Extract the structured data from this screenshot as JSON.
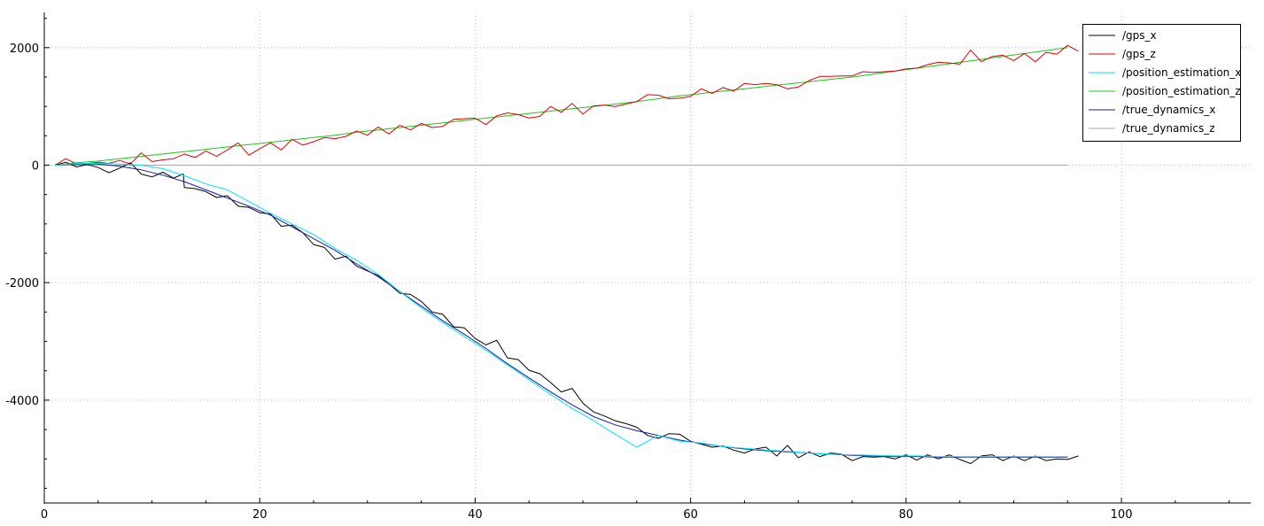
{
  "chart_data": {
    "type": "line",
    "title": "",
    "xlabel": "",
    "ylabel": "",
    "xlim": [
      0,
      112
    ],
    "ylim": [
      -5750,
      2600
    ],
    "x_ticks": [
      0,
      20,
      40,
      60,
      80,
      100
    ],
    "y_ticks": [
      -4000,
      -2000,
      0,
      2000
    ],
    "x_tick_labels": [
      "0",
      "20",
      "40",
      "60",
      "80",
      "100"
    ],
    "y_tick_labels": [
      "-4000",
      "-2000",
      "0",
      "2000"
    ],
    "grid": true,
    "legend_position": "top-right",
    "series": [
      {
        "name": "/gps_x",
        "color": "#000000",
        "x": [
          1,
          2,
          3,
          4,
          5,
          6,
          7,
          8,
          9,
          10,
          11,
          12,
          12.9,
          13,
          14,
          15,
          16,
          17,
          18,
          19,
          20,
          21,
          22,
          23,
          24,
          25,
          26,
          27,
          28,
          29,
          30,
          31,
          32,
          33,
          34,
          35,
          36,
          37,
          38,
          39,
          40,
          41,
          42,
          43,
          44,
          45,
          46,
          47,
          48,
          49,
          50,
          51,
          52,
          53,
          54,
          55,
          56,
          57,
          58,
          59,
          60,
          61,
          62,
          63,
          64,
          65,
          66,
          67,
          68,
          69,
          70,
          71,
          72,
          73,
          74,
          75,
          76,
          77,
          78,
          79,
          80,
          81,
          82,
          83,
          84,
          85,
          86,
          87,
          88,
          89,
          90,
          91,
          92,
          93,
          94,
          95,
          96
        ],
        "y": [
          0,
          50,
          -30,
          10,
          -40,
          -130,
          -50,
          40,
          -150,
          -200,
          -120,
          -220,
          -150,
          -380,
          -400,
          -450,
          -550,
          -520,
          -700,
          -720,
          -810,
          -830,
          -1040,
          -1020,
          -1150,
          -1350,
          -1400,
          -1600,
          -1550,
          -1720,
          -1800,
          -1880,
          -2020,
          -2180,
          -2200,
          -2320,
          -2500,
          -2540,
          -2750,
          -2770,
          -2950,
          -3060,
          -2980,
          -3280,
          -3310,
          -3490,
          -3550,
          -3700,
          -3860,
          -3800,
          -4050,
          -4200,
          -4270,
          -4350,
          -4400,
          -4460,
          -4600,
          -4650,
          -4570,
          -4580,
          -4700,
          -4750,
          -4800,
          -4780,
          -4850,
          -4900,
          -4830,
          -4800,
          -4950,
          -4770,
          -4980,
          -4880,
          -4960,
          -4900,
          -4920,
          -5030,
          -4960,
          -4970,
          -4960,
          -5000,
          -4930,
          -5020,
          -4930,
          -5000,
          -4930,
          -5010,
          -5080,
          -4950,
          -4930,
          -5030,
          -4950,
          -5030,
          -4950,
          -5030,
          -5000,
          -5010,
          -4950
        ]
      },
      {
        "name": "/gps_z",
        "color": "#e00000",
        "x": [
          1,
          2,
          3,
          4,
          5,
          6,
          7,
          8,
          9,
          10,
          11,
          12,
          13,
          14,
          15,
          16,
          17,
          18,
          19,
          20,
          21,
          22,
          23,
          24,
          25,
          26,
          27,
          28,
          29,
          30,
          31,
          32,
          33,
          34,
          35,
          36,
          37,
          38,
          39,
          40,
          41,
          42,
          43,
          44,
          45,
          46,
          47,
          48,
          49,
          50,
          51,
          52,
          53,
          54,
          55,
          56,
          57,
          58,
          59,
          60,
          61,
          62,
          63,
          64,
          65,
          66,
          67,
          68,
          69,
          70,
          71,
          72,
          73,
          74,
          75,
          76,
          77,
          78,
          79,
          80,
          81,
          82,
          83,
          84,
          85,
          86,
          87,
          88,
          89,
          90,
          91,
          92,
          93,
          94,
          95,
          96
        ],
        "y": [
          0,
          110,
          20,
          30,
          50,
          30,
          80,
          20,
          210,
          60,
          90,
          110,
          190,
          130,
          240,
          150,
          260,
          380,
          170,
          280,
          380,
          260,
          440,
          340,
          400,
          470,
          450,
          490,
          580,
          510,
          650,
          530,
          680,
          600,
          710,
          640,
          660,
          780,
          790,
          800,
          690,
          840,
          890,
          860,
          800,
          830,
          1000,
          900,
          1050,
          870,
          1010,
          1020,
          1000,
          1040,
          1080,
          1200,
          1190,
          1130,
          1140,
          1170,
          1300,
          1220,
          1320,
          1260,
          1390,
          1370,
          1390,
          1370,
          1300,
          1330,
          1440,
          1510,
          1510,
          1520,
          1520,
          1590,
          1580,
          1590,
          1600,
          1640,
          1650,
          1710,
          1750,
          1740,
          1720,
          1960,
          1760,
          1850,
          1870,
          1780,
          1900,
          1760,
          1920,
          1890,
          2040,
          1940
        ]
      },
      {
        "name": "/position_estimation_x",
        "color": "#00e5ee",
        "x": [
          1,
          3,
          5,
          7,
          9,
          11,
          13,
          15,
          17,
          19,
          21,
          23,
          25,
          27,
          29,
          31,
          33,
          35,
          37,
          39,
          41,
          43,
          45,
          47,
          49,
          51,
          53,
          55,
          57,
          59,
          61,
          63,
          65,
          67,
          69,
          71,
          73,
          75,
          77,
          79,
          81,
          83,
          85,
          87,
          89,
          91,
          93,
          95
        ],
        "y": [
          0,
          30,
          30,
          20,
          0,
          -60,
          -180,
          -320,
          -420,
          -620,
          -820,
          -1000,
          -1180,
          -1420,
          -1620,
          -1860,
          -2150,
          -2430,
          -2680,
          -2920,
          -3150,
          -3400,
          -3650,
          -3900,
          -4140,
          -4350,
          -4580,
          -4800,
          -4600,
          -4700,
          -4730,
          -4790,
          -4820,
          -4850,
          -4870,
          -4900,
          -4920,
          -4930,
          -4940,
          -4950,
          -4950,
          -4960,
          -4960,
          -4960,
          -4960,
          -4960,
          -4960,
          -4960
        ]
      },
      {
        "name": "/position_estimation_z",
        "color": "#22c322",
        "x": [
          1,
          3,
          5,
          7,
          9,
          11,
          13,
          15,
          17,
          19,
          21,
          23,
          25,
          27,
          29,
          31,
          33,
          35,
          37,
          39,
          41,
          43,
          45,
          47,
          49,
          51,
          53,
          55,
          57,
          59,
          61,
          63,
          65,
          67,
          69,
          71,
          73,
          75,
          77,
          79,
          81,
          83,
          85,
          87,
          89,
          91,
          93,
          95
        ],
        "y": [
          0,
          40,
          70,
          110,
          150,
          190,
          230,
          270,
          310,
          350,
          390,
          430,
          470,
          510,
          560,
          600,
          640,
          680,
          720,
          760,
          800,
          840,
          880,
          920,
          960,
          1000,
          1040,
          1080,
          1130,
          1180,
          1220,
          1260,
          1300,
          1340,
          1380,
          1420,
          1460,
          1500,
          1550,
          1600,
          1650,
          1700,
          1750,
          1800,
          1850,
          1900,
          1950,
          2000
        ]
      },
      {
        "name": "/true_dynamics_x",
        "color": "#1a1aa6",
        "x": [
          1,
          3,
          5,
          7,
          9,
          11,
          13,
          15,
          17,
          19,
          21,
          23,
          25,
          27,
          29,
          31,
          33,
          35,
          37,
          39,
          41,
          43,
          45,
          47,
          49,
          51,
          53,
          55,
          57,
          59,
          61,
          63,
          65,
          67,
          69,
          71,
          73,
          75,
          77,
          79,
          81,
          83,
          85,
          87,
          89,
          91,
          93,
          95
        ],
        "y": [
          0,
          20,
          20,
          -20,
          -80,
          -170,
          -280,
          -420,
          -560,
          -700,
          -850,
          -1050,
          -1250,
          -1450,
          -1680,
          -1900,
          -2150,
          -2400,
          -2650,
          -2880,
          -3120,
          -3380,
          -3620,
          -3860,
          -4080,
          -4280,
          -4420,
          -4520,
          -4600,
          -4680,
          -4740,
          -4790,
          -4830,
          -4860,
          -4880,
          -4900,
          -4920,
          -4940,
          -4950,
          -4960,
          -4960,
          -4970,
          -4970,
          -4970,
          -4970,
          -4970,
          -4970,
          -4970
        ]
      },
      {
        "name": "/true_dynamics_z",
        "color": "#a8a8a8",
        "x": [
          1,
          95
        ],
        "y": [
          0,
          0
        ]
      }
    ]
  }
}
